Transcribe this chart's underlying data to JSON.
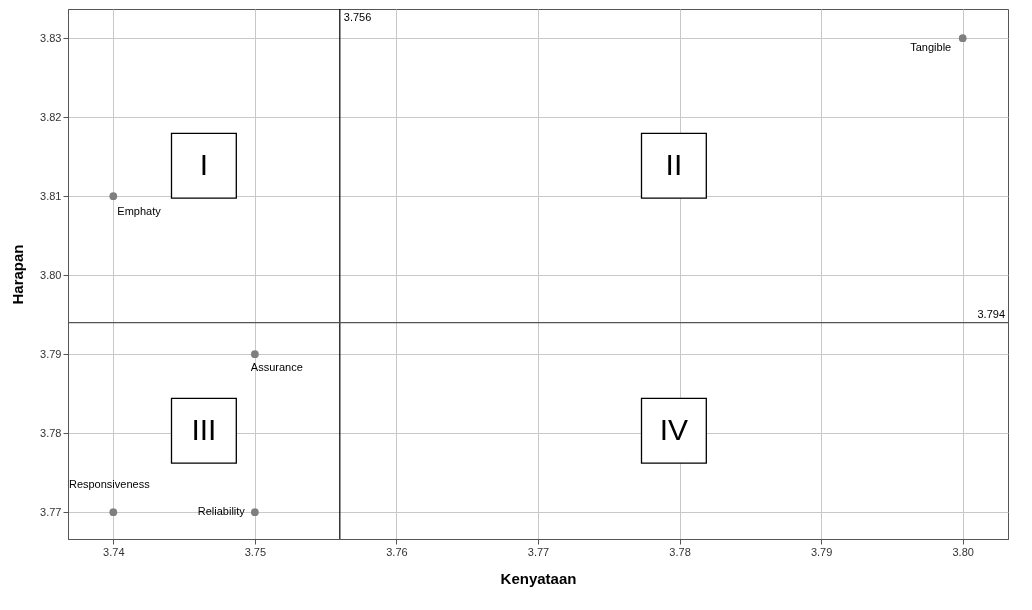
{
  "chart_data": {
    "type": "scatter",
    "xlabel": "Kenyataan",
    "ylabel": "Harapan",
    "xlim": [
      3.7368,
      3.8032
    ],
    "ylim": [
      3.7666,
      3.8337
    ],
    "xticks": [
      3.74,
      3.75,
      3.76,
      3.77,
      3.78,
      3.79,
      {
        "value": 3.8,
        "label": "3.80"
      }
    ],
    "yticks": [
      3.77,
      3.78,
      3.79,
      {
        "value": 3.8,
        "label": "3.80"
      },
      3.81,
      3.82,
      3.83
    ],
    "grid": true,
    "marker": "circle",
    "series": [
      {
        "name": "Tangible",
        "color": "#7f7f7f",
        "x": [
          3.8
        ],
        "values": [
          3.83
        ]
      },
      {
        "name": "Emphaty",
        "color": "#7f7f7f",
        "x": [
          3.74
        ],
        "values": [
          3.81
        ]
      },
      {
        "name": "Assurance",
        "color": "#7f7f7f",
        "x": [
          3.75
        ],
        "values": [
          3.79
        ]
      },
      {
        "name": "Responsiveness",
        "color": "#7f7f7f",
        "x": [
          3.74
        ],
        "values": [
          3.77
        ]
      },
      {
        "name": "Reliability",
        "color": "#7f7f7f",
        "x": [
          3.75
        ],
        "values": [
          3.77
        ]
      }
    ],
    "ref_lines": [
      {
        "axis": "x",
        "value": 3.756,
        "label": "3.756",
        "color": "#000000"
      },
      {
        "axis": "y",
        "value": 3.794,
        "label": "3.794",
        "color": "#555555"
      }
    ],
    "annotations": [
      "I",
      "II",
      "III",
      "IV"
    ]
  }
}
